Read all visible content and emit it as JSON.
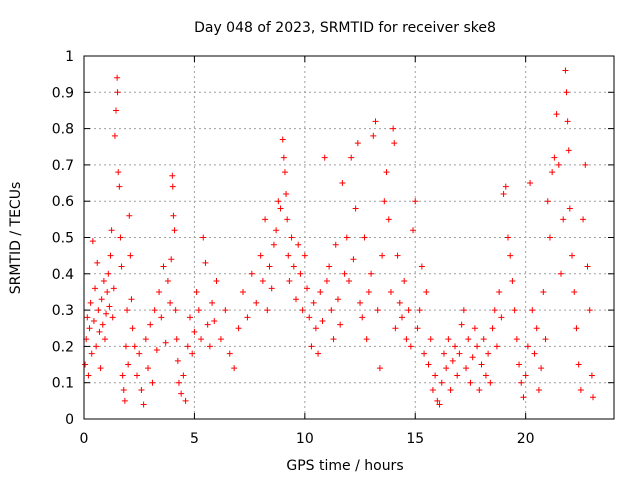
{
  "chart_data": {
    "type": "scatter",
    "title": "Day 048 of 2023, SRMTID for receiver ske8",
    "xlabel": "GPS time / hours",
    "ylabel": "SRMTID / TECUs",
    "xlim": [
      0,
      24
    ],
    "ylim": [
      0,
      1
    ],
    "xticks": [
      0,
      5,
      10,
      15,
      20
    ],
    "xtick_labels": [
      "0",
      "5",
      "10",
      "15",
      "20"
    ],
    "yticks": [
      0,
      0.1,
      0.2,
      0.3,
      0.4,
      0.5,
      0.6,
      0.7,
      0.8,
      0.9,
      1
    ],
    "ytick_labels": [
      "0",
      "0.1",
      "0.2",
      "0.3",
      "0.4",
      "0.5",
      "0.6",
      "0.7",
      "0.8",
      "0.9",
      "1"
    ],
    "grid": true,
    "marker": "+",
    "color": "#ff0000",
    "series": [
      {
        "name": "SRMTID",
        "points": [
          [
            0.05,
            0.15
          ],
          [
            0.1,
            0.22
          ],
          [
            0.15,
            0.28
          ],
          [
            0.2,
            0.12
          ],
          [
            0.25,
            0.25
          ],
          [
            0.3,
            0.32
          ],
          [
            0.35,
            0.18
          ],
          [
            0.4,
            0.49
          ],
          [
            0.45,
            0.27
          ],
          [
            0.5,
            0.36
          ],
          [
            0.55,
            0.2
          ],
          [
            0.6,
            0.43
          ],
          [
            0.65,
            0.3
          ],
          [
            0.7,
            0.24
          ],
          [
            0.75,
            0.14
          ],
          [
            0.8,
            0.33
          ],
          [
            0.85,
            0.26
          ],
          [
            0.9,
            0.38
          ],
          [
            0.95,
            0.22
          ],
          [
            1.0,
            0.29
          ],
          [
            1.05,
            0.35
          ],
          [
            1.1,
            0.4
          ],
          [
            1.15,
            0.31
          ],
          [
            1.2,
            0.45
          ],
          [
            1.25,
            0.52
          ],
          [
            1.3,
            0.28
          ],
          [
            1.35,
            0.36
          ],
          [
            1.4,
            0.78
          ],
          [
            1.45,
            0.85
          ],
          [
            1.5,
            0.94
          ],
          [
            1.52,
            0.9
          ],
          [
            1.55,
            0.68
          ],
          [
            1.6,
            0.64
          ],
          [
            1.65,
            0.5
          ],
          [
            1.7,
            0.42
          ],
          [
            1.75,
            0.12
          ],
          [
            1.8,
            0.08
          ],
          [
            1.85,
            0.05
          ],
          [
            1.9,
            0.2
          ],
          [
            1.95,
            0.3
          ],
          [
            2.0,
            0.15
          ],
          [
            2.05,
            0.56
          ],
          [
            2.1,
            0.45
          ],
          [
            2.15,
            0.33
          ],
          [
            2.2,
            0.25
          ],
          [
            2.3,
            0.2
          ],
          [
            2.4,
            0.12
          ],
          [
            2.5,
            0.18
          ],
          [
            2.6,
            0.08
          ],
          [
            2.7,
            0.04
          ],
          [
            2.8,
            0.22
          ],
          [
            2.9,
            0.14
          ],
          [
            3.0,
            0.26
          ],
          [
            3.1,
            0.1
          ],
          [
            3.2,
            0.3
          ],
          [
            3.3,
            0.19
          ],
          [
            3.4,
            0.35
          ],
          [
            3.5,
            0.28
          ],
          [
            3.6,
            0.42
          ],
          [
            3.7,
            0.21
          ],
          [
            3.8,
            0.38
          ],
          [
            3.9,
            0.32
          ],
          [
            3.95,
            0.44
          ],
          [
            4.0,
            0.67
          ],
          [
            4.02,
            0.64
          ],
          [
            4.05,
            0.56
          ],
          [
            4.1,
            0.52
          ],
          [
            4.15,
            0.3
          ],
          [
            4.2,
            0.22
          ],
          [
            4.25,
            0.16
          ],
          [
            4.3,
            0.1
          ],
          [
            4.4,
            0.07
          ],
          [
            4.5,
            0.12
          ],
          [
            4.6,
            0.05
          ],
          [
            4.7,
            0.2
          ],
          [
            4.8,
            0.28
          ],
          [
            4.9,
            0.18
          ],
          [
            5.0,
            0.24
          ],
          [
            5.1,
            0.35
          ],
          [
            5.2,
            0.3
          ],
          [
            5.3,
            0.22
          ],
          [
            5.4,
            0.5
          ],
          [
            5.5,
            0.43
          ],
          [
            5.6,
            0.26
          ],
          [
            5.7,
            0.2
          ],
          [
            5.8,
            0.32
          ],
          [
            5.9,
            0.27
          ],
          [
            6.0,
            0.38
          ],
          [
            6.2,
            0.22
          ],
          [
            6.4,
            0.3
          ],
          [
            6.6,
            0.18
          ],
          [
            6.8,
            0.14
          ],
          [
            7.0,
            0.25
          ],
          [
            7.2,
            0.35
          ],
          [
            7.4,
            0.28
          ],
          [
            7.6,
            0.4
          ],
          [
            7.8,
            0.32
          ],
          [
            8.0,
            0.45
          ],
          [
            8.1,
            0.38
          ],
          [
            8.2,
            0.55
          ],
          [
            8.3,
            0.3
          ],
          [
            8.4,
            0.42
          ],
          [
            8.5,
            0.36
          ],
          [
            8.6,
            0.48
          ],
          [
            8.7,
            0.52
          ],
          [
            8.8,
            0.6
          ],
          [
            8.9,
            0.58
          ],
          [
            9.0,
            0.77
          ],
          [
            9.05,
            0.72
          ],
          [
            9.1,
            0.68
          ],
          [
            9.15,
            0.62
          ],
          [
            9.2,
            0.55
          ],
          [
            9.25,
            0.45
          ],
          [
            9.3,
            0.38
          ],
          [
            9.4,
            0.5
          ],
          [
            9.5,
            0.42
          ],
          [
            9.6,
            0.33
          ],
          [
            9.7,
            0.48
          ],
          [
            9.8,
            0.4
          ],
          [
            9.9,
            0.3
          ],
          [
            10.0,
            0.45
          ],
          [
            10.1,
            0.36
          ],
          [
            10.2,
            0.28
          ],
          [
            10.3,
            0.2
          ],
          [
            10.4,
            0.32
          ],
          [
            10.5,
            0.25
          ],
          [
            10.6,
            0.18
          ],
          [
            10.7,
            0.35
          ],
          [
            10.8,
            0.27
          ],
          [
            10.9,
            0.72
          ],
          [
            11.0,
            0.38
          ],
          [
            11.1,
            0.42
          ],
          [
            11.2,
            0.3
          ],
          [
            11.3,
            0.22
          ],
          [
            11.4,
            0.48
          ],
          [
            11.5,
            0.33
          ],
          [
            11.6,
            0.26
          ],
          [
            11.7,
            0.65
          ],
          [
            11.8,
            0.4
          ],
          [
            11.9,
            0.5
          ],
          [
            12.0,
            0.38
          ],
          [
            12.1,
            0.72
          ],
          [
            12.2,
            0.44
          ],
          [
            12.3,
            0.58
          ],
          [
            12.4,
            0.76
          ],
          [
            12.5,
            0.32
          ],
          [
            12.6,
            0.28
          ],
          [
            12.7,
            0.5
          ],
          [
            12.8,
            0.22
          ],
          [
            12.9,
            0.35
          ],
          [
            13.0,
            0.4
          ],
          [
            13.1,
            0.78
          ],
          [
            13.2,
            0.82
          ],
          [
            13.3,
            0.3
          ],
          [
            13.4,
            0.14
          ],
          [
            13.5,
            0.45
          ],
          [
            13.6,
            0.6
          ],
          [
            13.7,
            0.68
          ],
          [
            13.8,
            0.55
          ],
          [
            13.9,
            0.35
          ],
          [
            14.0,
            0.8
          ],
          [
            14.05,
            0.76
          ],
          [
            14.1,
            0.25
          ],
          [
            14.2,
            0.45
          ],
          [
            14.3,
            0.32
          ],
          [
            14.4,
            0.28
          ],
          [
            14.5,
            0.38
          ],
          [
            14.6,
            0.22
          ],
          [
            14.7,
            0.3
          ],
          [
            14.8,
            0.2
          ],
          [
            14.9,
            0.52
          ],
          [
            15.0,
            0.6
          ],
          [
            15.1,
            0.25
          ],
          [
            15.2,
            0.3
          ],
          [
            15.3,
            0.42
          ],
          [
            15.4,
            0.18
          ],
          [
            15.5,
            0.35
          ],
          [
            15.6,
            0.15
          ],
          [
            15.7,
            0.22
          ],
          [
            15.8,
            0.08
          ],
          [
            15.9,
            0.12
          ],
          [
            16.0,
            0.05
          ],
          [
            16.1,
            0.04
          ],
          [
            16.2,
            0.1
          ],
          [
            16.3,
            0.18
          ],
          [
            16.4,
            0.14
          ],
          [
            16.5,
            0.22
          ],
          [
            16.6,
            0.08
          ],
          [
            16.7,
            0.16
          ],
          [
            16.8,
            0.2
          ],
          [
            16.9,
            0.12
          ],
          [
            17.0,
            0.18
          ],
          [
            17.1,
            0.26
          ],
          [
            17.2,
            0.3
          ],
          [
            17.3,
            0.14
          ],
          [
            17.4,
            0.22
          ],
          [
            17.5,
            0.1
          ],
          [
            17.6,
            0.17
          ],
          [
            17.7,
            0.25
          ],
          [
            17.8,
            0.2
          ],
          [
            17.9,
            0.08
          ],
          [
            18.0,
            0.15
          ],
          [
            18.1,
            0.22
          ],
          [
            18.2,
            0.12
          ],
          [
            18.3,
            0.18
          ],
          [
            18.4,
            0.1
          ],
          [
            18.5,
            0.25
          ],
          [
            18.6,
            0.3
          ],
          [
            18.7,
            0.2
          ],
          [
            18.8,
            0.35
          ],
          [
            18.9,
            0.28
          ],
          [
            19.0,
            0.62
          ],
          [
            19.1,
            0.64
          ],
          [
            19.2,
            0.5
          ],
          [
            19.3,
            0.45
          ],
          [
            19.4,
            0.38
          ],
          [
            19.5,
            0.3
          ],
          [
            19.6,
            0.22
          ],
          [
            19.7,
            0.15
          ],
          [
            19.8,
            0.1
          ],
          [
            19.9,
            0.06
          ],
          [
            20.0,
            0.12
          ],
          [
            20.1,
            0.2
          ],
          [
            20.2,
            0.65
          ],
          [
            20.3,
            0.3
          ],
          [
            20.4,
            0.18
          ],
          [
            20.5,
            0.25
          ],
          [
            20.6,
            0.08
          ],
          [
            20.7,
            0.14
          ],
          [
            20.8,
            0.35
          ],
          [
            20.9,
            0.22
          ],
          [
            21.0,
            0.6
          ],
          [
            21.1,
            0.5
          ],
          [
            21.2,
            0.68
          ],
          [
            21.3,
            0.72
          ],
          [
            21.4,
            0.84
          ],
          [
            21.5,
            0.7
          ],
          [
            21.6,
            0.4
          ],
          [
            21.7,
            0.55
          ],
          [
            21.8,
            0.96
          ],
          [
            21.85,
            0.9
          ],
          [
            21.9,
            0.82
          ],
          [
            21.95,
            0.74
          ],
          [
            22.0,
            0.58
          ],
          [
            22.1,
            0.45
          ],
          [
            22.2,
            0.35
          ],
          [
            22.3,
            0.25
          ],
          [
            22.4,
            0.15
          ],
          [
            22.5,
            0.08
          ],
          [
            22.6,
            0.55
          ],
          [
            22.7,
            0.7
          ],
          [
            22.8,
            0.42
          ],
          [
            22.9,
            0.3
          ],
          [
            23.0,
            0.12
          ],
          [
            23.05,
            0.06
          ]
        ]
      }
    ]
  }
}
